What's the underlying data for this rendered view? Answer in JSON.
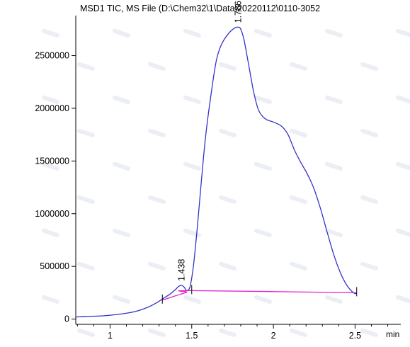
{
  "chart_data": {
    "type": "line",
    "title": "MSD1 TIC, MS File (D:\\Chem32\\1\\Data\\20220112\\0110-3052",
    "xlabel": "min",
    "ylabel": "",
    "xlim": [
      0.79,
      2.78
    ],
    "ylim": [
      -50000,
      2880000
    ],
    "xticks": [
      1,
      1.5,
      2,
      2.5
    ],
    "xtick_labels": [
      "1",
      "1.5",
      "2",
      "2.5"
    ],
    "yticks": [
      0,
      500000,
      1000000,
      1500000,
      2000000,
      2500000
    ],
    "ytick_labels": [
      "0",
      "500000",
      "1000000",
      "1500000",
      "2000000",
      "2500000"
    ],
    "grid": false,
    "colors": {
      "signal": "#3333cc",
      "baseline": "#e020d0",
      "axis": "#000000",
      "title": "#2222cc"
    },
    "series": [
      {
        "role": "signal",
        "x": [
          0.79,
          0.85,
          0.95,
          1.05,
          1.15,
          1.22,
          1.28,
          1.33,
          1.37,
          1.4,
          1.42,
          1.438,
          1.455,
          1.47,
          1.49,
          1.51,
          1.53,
          1.55,
          1.57,
          1.59,
          1.62,
          1.65,
          1.68,
          1.72,
          1.76,
          1.786,
          1.8,
          1.82,
          1.85,
          1.88,
          1.91,
          1.95,
          2.0,
          2.05,
          2.09,
          2.13,
          2.17,
          2.21,
          2.25,
          2.29,
          2.33,
          2.37,
          2.41,
          2.45,
          2.49,
          2.51
        ],
        "y": [
          20000,
          25000,
          30000,
          45000,
          70000,
          105000,
          150000,
          200000,
          240000,
          280000,
          310000,
          320000,
          300000,
          270000,
          310000,
          500000,
          800000,
          1150000,
          1500000,
          1800000,
          2150000,
          2450000,
          2600000,
          2700000,
          2760000,
          2770000,
          2750000,
          2650000,
          2400000,
          2150000,
          1980000,
          1900000,
          1870000,
          1830000,
          1750000,
          1600000,
          1480000,
          1370000,
          1230000,
          1040000,
          820000,
          610000,
          440000,
          320000,
          250000,
          240000
        ]
      },
      {
        "role": "baseline",
        "x": [
          1.32,
          1.4,
          1.47,
          1.5,
          2.51
        ],
        "y": [
          180000,
          220000,
          255000,
          270000,
          250000
        ]
      }
    ],
    "annotations": [
      {
        "label": "1.438",
        "x": 1.438,
        "y": 320000
      },
      {
        "label": "1.786",
        "x": 1.786,
        "y": 2770000
      }
    ],
    "event_marks": [
      1.32,
      1.5,
      2.51
    ]
  }
}
